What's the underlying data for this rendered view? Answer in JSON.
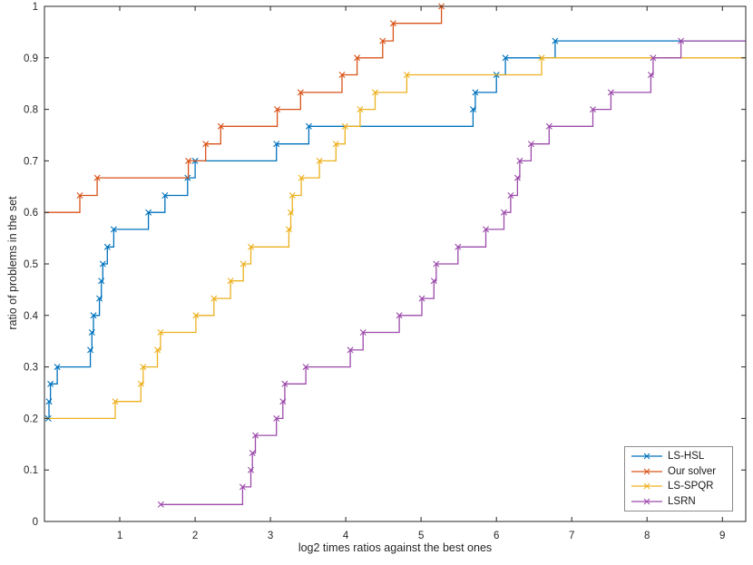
{
  "figure": {
    "background": "#ffffff",
    "axis_color": "#262626",
    "tick_label_font_px": 11.5
  },
  "chart_data": {
    "type": "line",
    "subtype": "step-performance-profile",
    "title": "",
    "xlabel": "log2 times ratios against the best ones",
    "ylabel": "ratio of problems in the set",
    "xlim": [
      0,
      9.31
    ],
    "ylim": [
      0,
      1
    ],
    "x_ticks": [
      1,
      2,
      3,
      4,
      5,
      6,
      7,
      8,
      9
    ],
    "x_tick_labels": [
      "1",
      "2",
      "3",
      "4",
      "5",
      "6",
      "7",
      "8",
      "9"
    ],
    "y_ticks": [
      0,
      0.1,
      0.2,
      0.3,
      0.4,
      0.5,
      0.6,
      0.7,
      0.8,
      0.9,
      1
    ],
    "y_tick_labels": [
      "0",
      "0.1",
      "0.2",
      "0.3",
      "0.4",
      "0.5",
      "0.6",
      "0.7",
      "0.8",
      "0.9",
      "1"
    ],
    "grid": false,
    "marker": "x",
    "legend": {
      "position": "southeast",
      "entries": [
        "LS-HSL",
        "Our solver",
        "LS-SPQR",
        "LSRN"
      ]
    },
    "series": [
      {
        "name": "LS-HSL",
        "color": "#0072BD",
        "extend_to": 9.31,
        "points": [
          [
            0.05,
            0.2
          ],
          [
            0.06,
            0.233
          ],
          [
            0.08,
            0.267
          ],
          [
            0.17,
            0.3
          ],
          [
            0.61,
            0.333
          ],
          [
            0.63,
            0.367
          ],
          [
            0.65,
            0.4
          ],
          [
            0.73,
            0.433
          ],
          [
            0.755,
            0.467
          ],
          [
            0.775,
            0.5
          ],
          [
            0.835,
            0.533
          ],
          [
            0.92,
            0.567
          ],
          [
            1.38,
            0.6
          ],
          [
            1.6,
            0.633
          ],
          [
            1.9,
            0.667
          ],
          [
            2.0,
            0.7
          ],
          [
            3.08,
            0.733
          ],
          [
            3.51,
            0.767
          ],
          [
            5.69,
            0.8
          ],
          [
            5.72,
            0.833
          ],
          [
            6.0,
            0.867
          ],
          [
            6.12,
            0.9
          ],
          [
            6.78,
            0.933
          ]
        ]
      },
      {
        "name": "Our solver",
        "color": "#D95319",
        "extend_to": null,
        "points": [
          [
            0,
            0.6
          ],
          [
            0.47,
            0.633
          ],
          [
            0.7,
            0.667
          ],
          [
            1.91,
            0.7
          ],
          [
            2.14,
            0.733
          ],
          [
            2.34,
            0.767
          ],
          [
            3.09,
            0.8
          ],
          [
            3.4,
            0.833
          ],
          [
            3.95,
            0.867
          ],
          [
            4.15,
            0.9
          ],
          [
            4.49,
            0.933
          ],
          [
            4.63,
            0.967
          ],
          [
            5.27,
            1.0
          ]
        ]
      },
      {
        "name": "LS-SPQR",
        "color": "#EDB120",
        "extend_to": 9.31,
        "points": [
          [
            0,
            0.2
          ],
          [
            0.94,
            0.233
          ],
          [
            1.28,
            0.267
          ],
          [
            1.31,
            0.3
          ],
          [
            1.5,
            0.333
          ],
          [
            1.54,
            0.367
          ],
          [
            2.01,
            0.4
          ],
          [
            2.25,
            0.433
          ],
          [
            2.47,
            0.467
          ],
          [
            2.64,
            0.5
          ],
          [
            2.74,
            0.533
          ],
          [
            3.245,
            0.567
          ],
          [
            3.27,
            0.6
          ],
          [
            3.29,
            0.633
          ],
          [
            3.41,
            0.667
          ],
          [
            3.65,
            0.7
          ],
          [
            3.87,
            0.733
          ],
          [
            3.99,
            0.767
          ],
          [
            4.19,
            0.8
          ],
          [
            4.39,
            0.833
          ],
          [
            4.81,
            0.867
          ],
          [
            6.6,
            0.9
          ]
        ]
      },
      {
        "name": "LSRN",
        "color": "#9C4BAB",
        "extend_to": 9.31,
        "points": [
          [
            1.545,
            0.033
          ],
          [
            2.63,
            0.067
          ],
          [
            2.74,
            0.1
          ],
          [
            2.76,
            0.133
          ],
          [
            2.8,
            0.167
          ],
          [
            3.08,
            0.2
          ],
          [
            3.165,
            0.233
          ],
          [
            3.19,
            0.267
          ],
          [
            3.47,
            0.3
          ],
          [
            4.06,
            0.333
          ],
          [
            4.23,
            0.367
          ],
          [
            4.71,
            0.4
          ],
          [
            5.01,
            0.433
          ],
          [
            5.17,
            0.467
          ],
          [
            5.2,
            0.5
          ],
          [
            5.49,
            0.533
          ],
          [
            5.86,
            0.567
          ],
          [
            6.1,
            0.6
          ],
          [
            6.19,
            0.633
          ],
          [
            6.28,
            0.667
          ],
          [
            6.31,
            0.7
          ],
          [
            6.46,
            0.733
          ],
          [
            6.7,
            0.767
          ],
          [
            7.28,
            0.8
          ],
          [
            7.52,
            0.833
          ],
          [
            8.05,
            0.867
          ],
          [
            8.08,
            0.9
          ],
          [
            8.45,
            0.933
          ]
        ]
      }
    ]
  }
}
